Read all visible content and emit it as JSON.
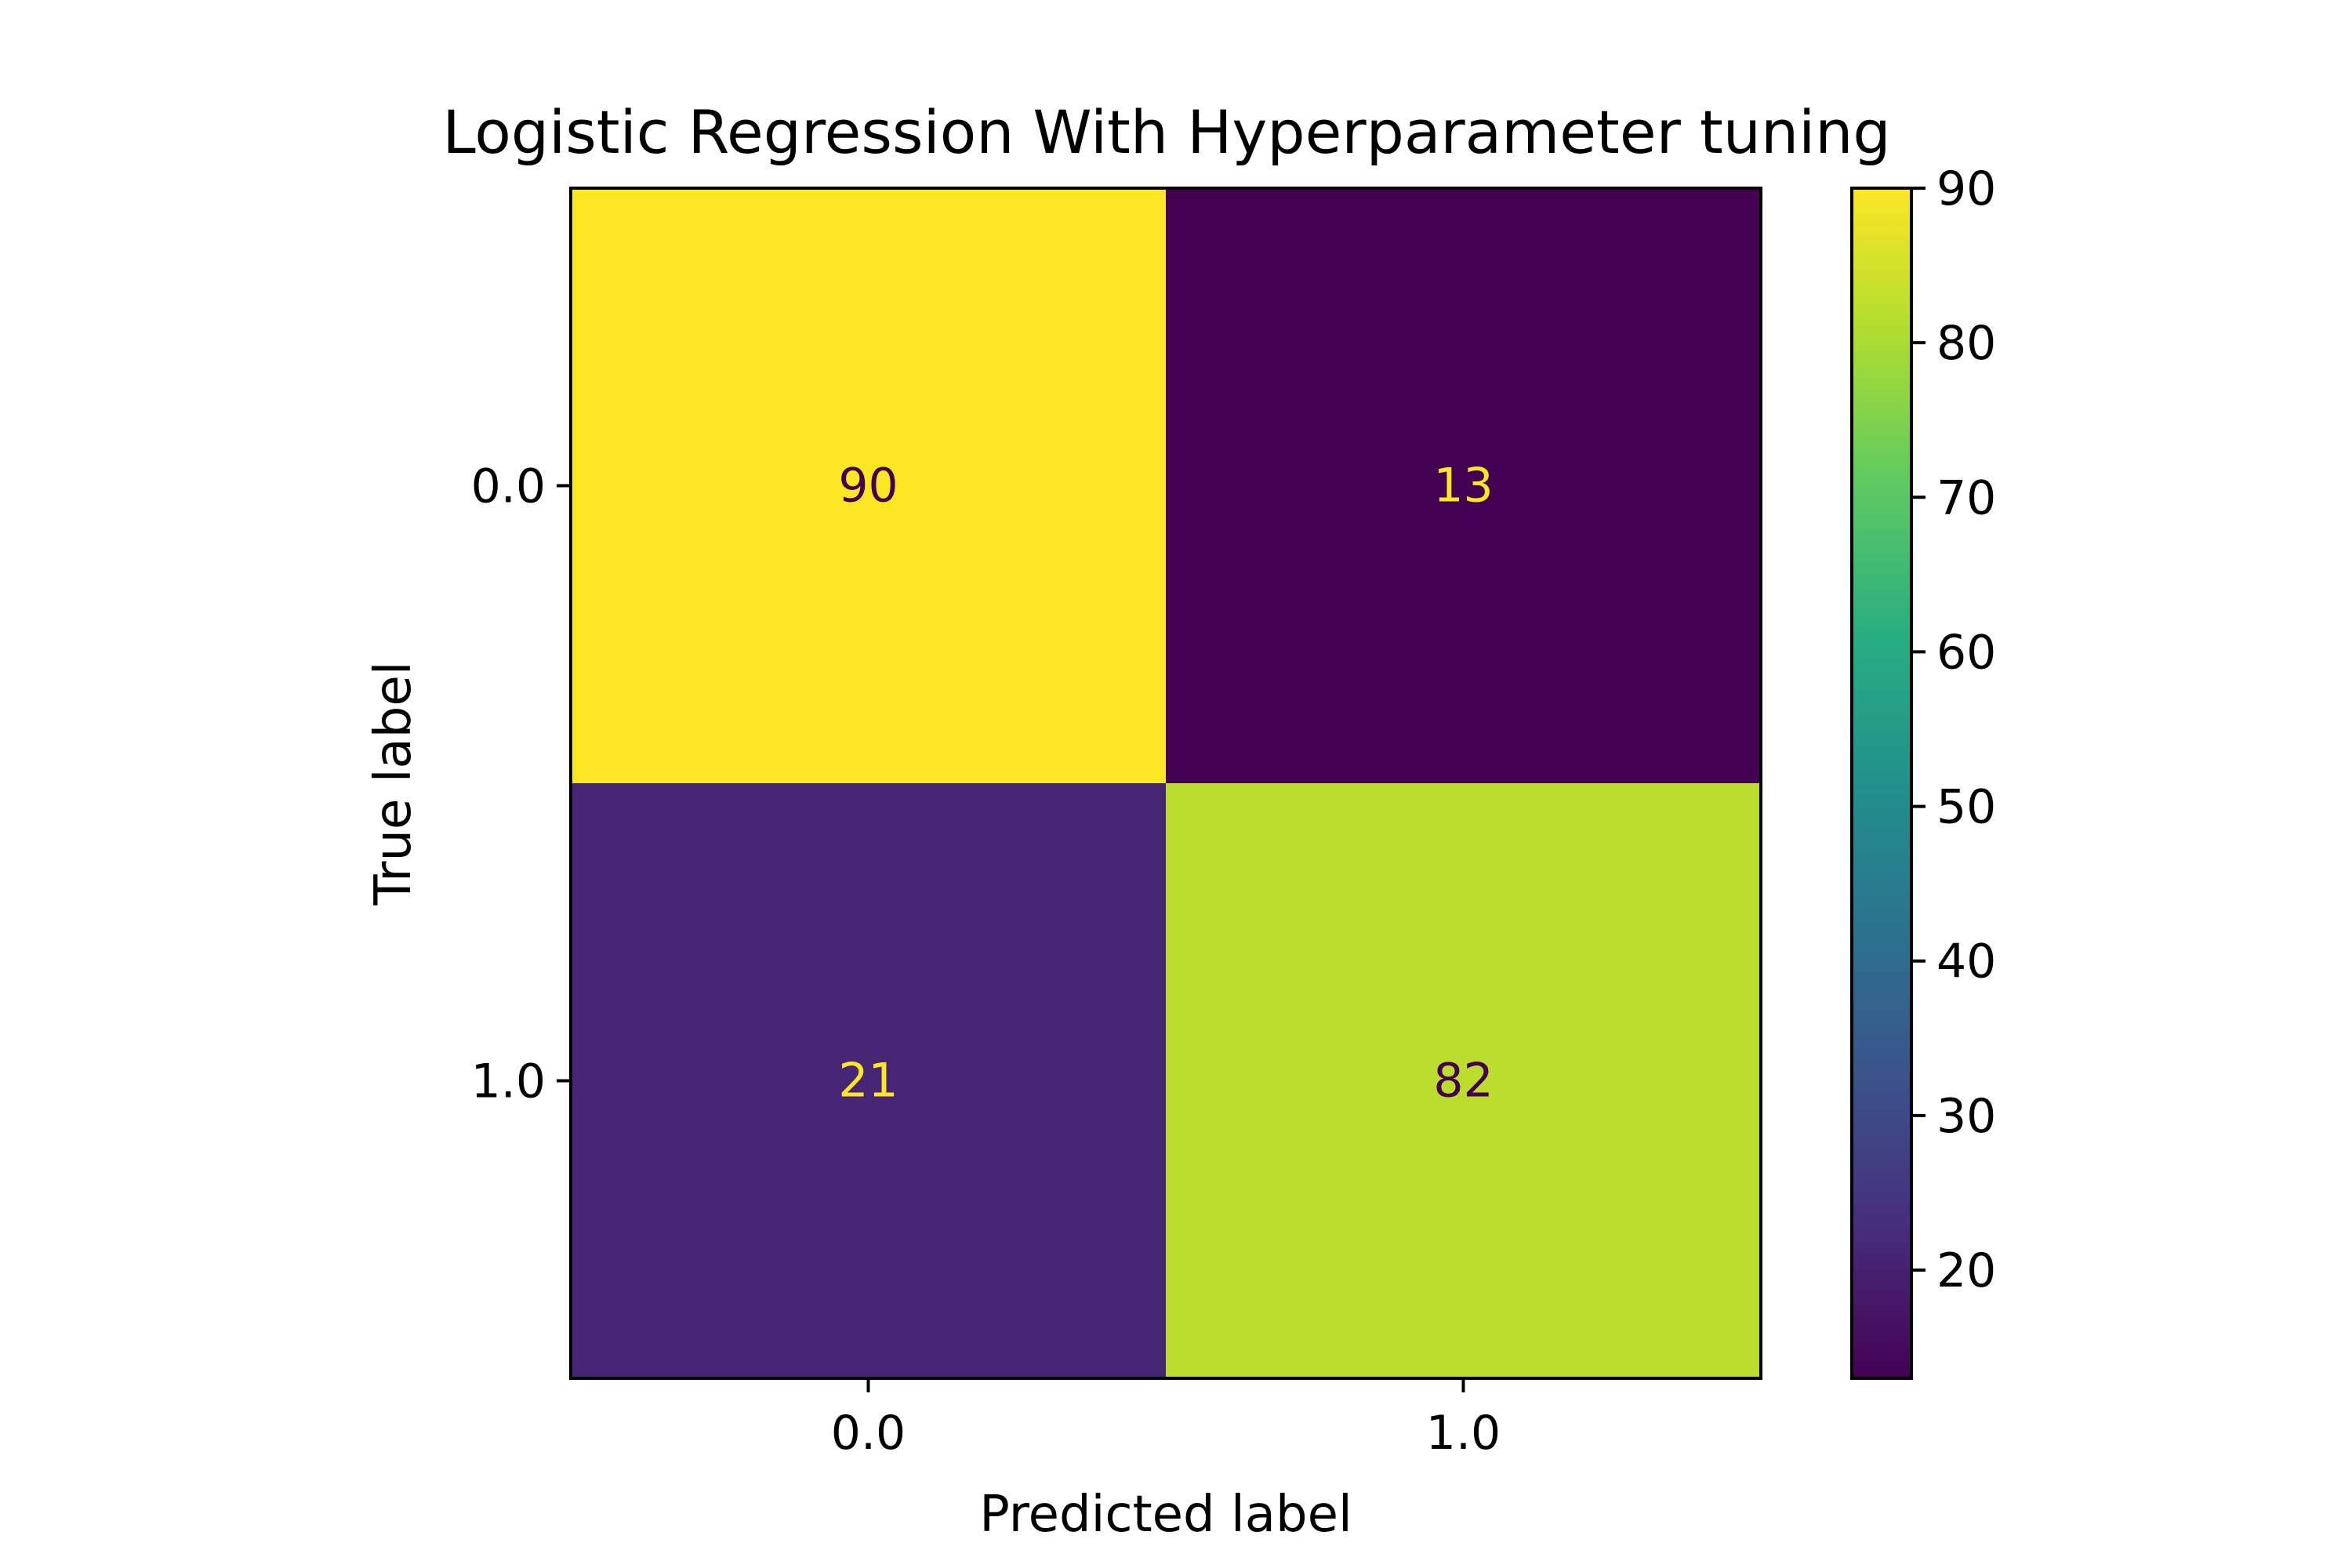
{
  "chart_data": {
    "type": "heatmap",
    "title": "Logistic Regression With Hyperparameter tuning",
    "xlabel": "Predicted label",
    "ylabel": "True label",
    "x_categories": [
      "0.0",
      "1.0"
    ],
    "y_categories": [
      "0.0",
      "1.0"
    ],
    "values": [
      [
        90,
        13
      ],
      [
        21,
        82
      ]
    ],
    "colormap": "viridis",
    "colorbar": {
      "range": [
        13,
        90
      ],
      "ticks": [
        20,
        30,
        40,
        50,
        60,
        70,
        80,
        90
      ]
    }
  }
}
